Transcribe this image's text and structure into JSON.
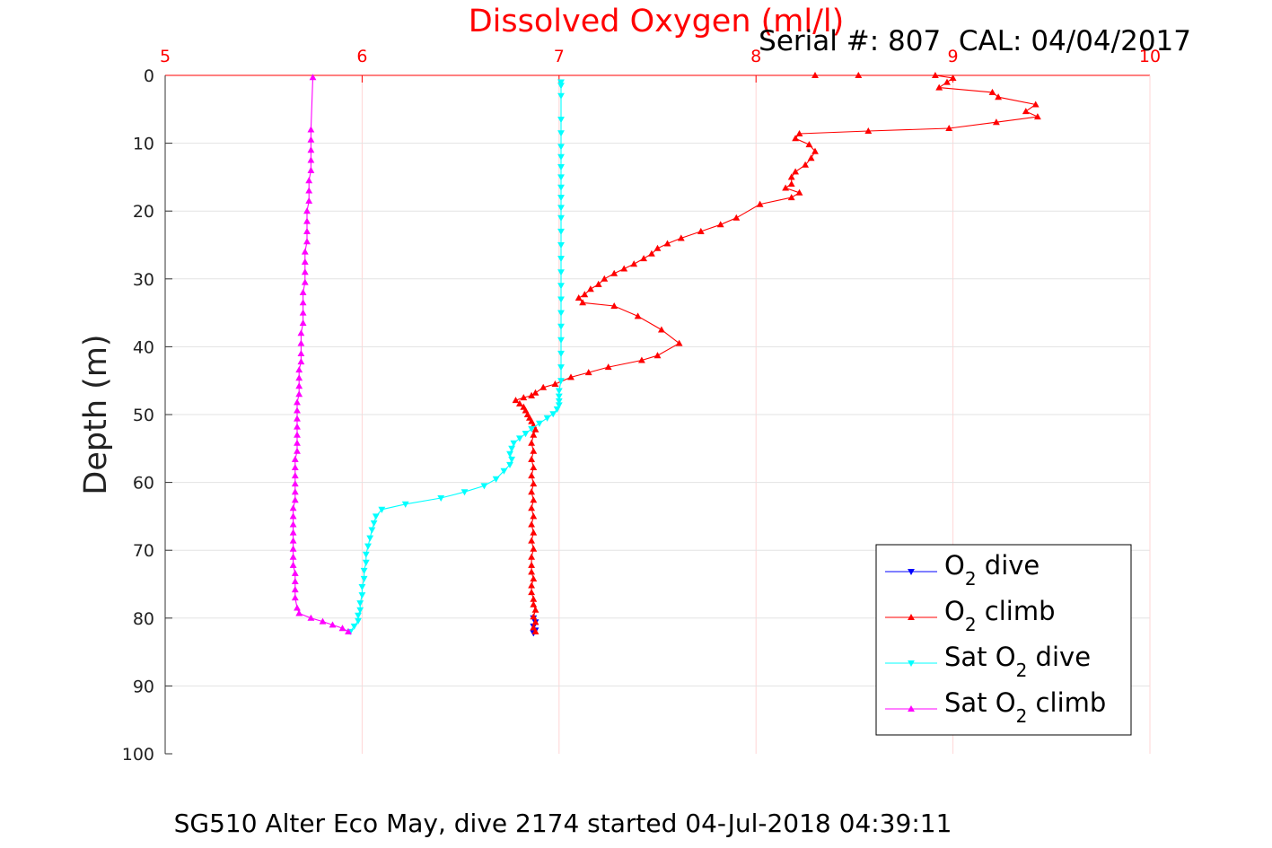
{
  "chart_data": {
    "type": "line",
    "title": "Dissolved Oxygen (ml/l)",
    "annotation": "Serial #: 807  CAL: 04/04/2017",
    "caption": "SG510 Alter Eco May, dive 2174 started 04-Jul-2018 04:39:11",
    "ylabel": "Depth (m)",
    "xlim": [
      5,
      10
    ],
    "ylim": [
      0,
      100
    ],
    "y_reversed": true,
    "x_axis_position": "top",
    "xticks": [
      "5",
      "6",
      "7",
      "8",
      "9",
      "10"
    ],
    "yticks": [
      "0",
      "10",
      "20",
      "30",
      "40",
      "50",
      "60",
      "70",
      "80",
      "90",
      "100"
    ],
    "grid": true,
    "legend_position": "bottom-right",
    "series": [
      {
        "name_main": "O",
        "name_sub": "2",
        "name_post": " dive",
        "color": "#0000ff",
        "marker": "triangle-down",
        "x": [
          6.87,
          6.88,
          6.87,
          6.88,
          6.87
        ],
        "y": [
          80.0,
          80.6,
          81.2,
          81.8,
          82.2
        ]
      },
      {
        "name_main": "O",
        "name_sub": "2",
        "name_post": " climb",
        "color": "#ff0000",
        "marker": "triangle-up",
        "x": [
          6.88,
          6.87,
          6.88,
          6.87,
          6.88,
          6.87,
          6.87,
          6.86,
          6.86,
          6.87,
          6.86,
          6.86,
          6.86,
          6.87,
          6.86,
          6.87,
          6.86,
          6.87,
          6.86,
          6.87,
          6.86,
          6.87,
          6.86,
          6.87,
          6.86,
          6.87,
          6.86,
          6.87,
          6.88,
          6.87,
          6.86,
          6.85,
          6.84,
          6.83,
          6.82,
          6.8,
          6.78,
          6.82,
          6.86,
          6.88,
          6.92,
          6.98,
          7.06,
          7.15,
          7.25,
          7.42,
          7.5,
          7.61,
          7.52,
          7.4,
          7.28,
          7.12,
          7.1,
          7.13,
          7.16,
          7.2,
          7.23,
          7.28,
          7.33,
          7.38,
          7.43,
          7.47,
          7.5,
          7.55,
          7.62,
          7.72,
          7.82,
          7.9,
          8.02,
          8.18,
          8.22,
          8.15,
          8.18,
          8.18,
          8.2,
          8.25,
          8.28,
          8.3,
          8.27,
          8.2,
          8.22,
          8.57,
          8.98,
          9.22,
          9.43,
          9.37,
          9.42,
          9.23,
          9.2,
          8.93,
          8.97,
          9.0,
          8.91,
          8.52,
          8.3
        ],
        "y": [
          82.0,
          81.4,
          80.6,
          79.8,
          78.8,
          78.0,
          77.2,
          76.2,
          75.2,
          74.2,
          73.2,
          72.2,
          71.0,
          69.8,
          68.6,
          67.4,
          66.2,
          65.0,
          63.8,
          62.6,
          61.4,
          60.2,
          59.0,
          57.8,
          56.6,
          55.4,
          54.2,
          53.0,
          52.2,
          51.6,
          51.0,
          50.5,
          50.0,
          49.4,
          48.9,
          48.4,
          47.9,
          47.5,
          47.2,
          46.8,
          46.0,
          45.5,
          44.5,
          43.8,
          43.0,
          42.0,
          41.3,
          39.5,
          37.5,
          35.5,
          34.0,
          33.5,
          32.8,
          32.3,
          31.5,
          30.8,
          30.0,
          29.2,
          28.5,
          27.8,
          27.0,
          26.3,
          25.5,
          24.8,
          24.0,
          23.0,
          22.0,
          21.0,
          19.0,
          18.0,
          17.3,
          16.6,
          16.0,
          15.0,
          14.2,
          13.2,
          12.2,
          11.2,
          10.2,
          9.3,
          8.6,
          8.2,
          7.8,
          6.9,
          6.1,
          5.3,
          4.3,
          3.2,
          2.5,
          1.8,
          1.0,
          0.4,
          0.0,
          0.0,
          0.0
        ]
      },
      {
        "name_main": "Sat O",
        "name_sub": "2",
        "name_post": " dive",
        "color": "#00ffff",
        "marker": "triangle-down",
        "x": [
          7.01,
          7.01,
          7.01,
          7.01,
          7.01,
          7.01,
          7.01,
          7.01,
          7.01,
          7.01,
          7.01,
          7.01,
          7.01,
          7.01,
          7.01,
          7.01,
          7.01,
          7.01,
          7.01,
          7.01,
          7.01,
          7.01,
          7.01,
          7.01,
          7.01,
          7.0,
          7.0,
          7.0,
          7.0,
          6.99,
          6.97,
          6.94,
          6.9,
          6.86,
          6.83,
          6.8,
          6.77,
          6.76,
          6.75,
          6.76,
          6.75,
          6.72,
          6.68,
          6.62,
          6.52,
          6.4,
          6.22,
          6.1,
          6.07,
          6.06,
          6.05,
          6.04,
          6.03,
          6.02,
          6.02,
          6.01,
          6.01,
          6.0,
          6.0,
          5.99,
          5.99,
          5.98,
          5.98,
          5.96,
          5.94
        ],
        "y": [
          1.0,
          1.5,
          3.0,
          6.5,
          8.5,
          10.5,
          12.0,
          13.5,
          15.0,
          16.5,
          18.0,
          19.5,
          21.0,
          23.0,
          25.0,
          27.0,
          29.0,
          31.0,
          33.0,
          35.0,
          37.0,
          39.0,
          41.0,
          43.0,
          45.0,
          46.5,
          47.3,
          48.0,
          48.6,
          49.2,
          49.9,
          50.5,
          51.3,
          52.1,
          52.8,
          53.5,
          54.2,
          55.0,
          55.8,
          56.6,
          57.4,
          58.3,
          59.5,
          60.5,
          61.4,
          62.3,
          63.2,
          64.0,
          65.0,
          66.0,
          67.0,
          68.2,
          69.4,
          70.6,
          71.8,
          73.0,
          74.2,
          75.4,
          76.6,
          77.8,
          78.8,
          79.6,
          80.4,
          81.2,
          82.0
        ]
      },
      {
        "name_main": "Sat O",
        "name_sub": "2",
        "name_post": " climb",
        "color": "#ff00ff",
        "marker": "triangle-up",
        "x": [
          5.93,
          5.9,
          5.85,
          5.8,
          5.74,
          5.68,
          5.67,
          5.66,
          5.66,
          5.66,
          5.66,
          5.65,
          5.65,
          5.65,
          5.65,
          5.65,
          5.65,
          5.65,
          5.65,
          5.66,
          5.66,
          5.66,
          5.66,
          5.66,
          5.66,
          5.67,
          5.67,
          5.67,
          5.67,
          5.67,
          5.67,
          5.67,
          5.68,
          5.68,
          5.68,
          5.68,
          5.69,
          5.69,
          5.69,
          5.69,
          5.7,
          5.7,
          5.7,
          5.7,
          5.71,
          5.71,
          5.71,
          5.71,
          5.72,
          5.72,
          5.72,
          5.72,
          5.73,
          5.73,
          5.73,
          5.74,
          5.74,
          5.74,
          5.74,
          5.74,
          5.75
        ],
        "y": [
          82.0,
          81.5,
          81.0,
          80.5,
          80.0,
          79.3,
          78.5,
          77.0,
          75.8,
          74.6,
          73.4,
          72.2,
          71.0,
          69.8,
          68.6,
          67.4,
          66.2,
          65.0,
          63.8,
          62.6,
          61.4,
          60.2,
          59.0,
          57.8,
          56.6,
          55.4,
          54.2,
          53.0,
          51.8,
          50.6,
          49.4,
          48.2,
          47.0,
          45.8,
          44.6,
          43.4,
          42.2,
          41.0,
          39.5,
          38.0,
          36.5,
          35.0,
          33.5,
          32.0,
          30.5,
          29.0,
          27.5,
          26.0,
          24.5,
          23.0,
          21.5,
          20.0,
          18.5,
          17.0,
          15.5,
          14.0,
          12.5,
          11.0,
          9.5,
          8.0,
          0.3
        ]
      }
    ]
  }
}
